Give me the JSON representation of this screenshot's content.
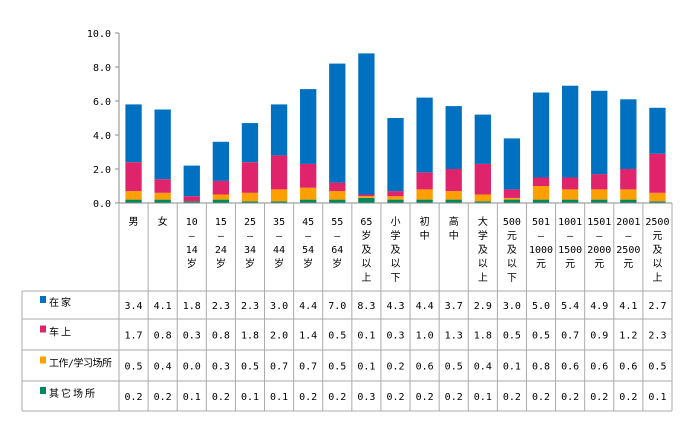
{
  "chart_data": {
    "type": "bar",
    "stacked": true,
    "title": "",
    "xlabel": "",
    "ylabel": "",
    "ylim": [
      0,
      10
    ],
    "yticks": [
      "0.0",
      "2.0",
      "4.0",
      "6.0",
      "8.0",
      "10.0"
    ],
    "categories": [
      "男",
      "女",
      "10–14岁",
      "15–24岁",
      "25–34岁",
      "35–44岁",
      "45–54岁",
      "55–64岁",
      "65岁及以上",
      "小学及以下",
      "初中",
      "高中",
      "大学及以上",
      "500元及以下",
      "501–1000元",
      "1001–1500元",
      "1501–2000元",
      "2001–2500元",
      "2500元及以上"
    ],
    "category_lines": [
      [
        "男"
      ],
      [
        "女"
      ],
      [
        "10",
        "–",
        "14",
        "岁"
      ],
      [
        "15",
        "–",
        "24",
        "岁"
      ],
      [
        "25",
        "–",
        "34",
        "岁"
      ],
      [
        "35",
        "–",
        "44",
        "岁"
      ],
      [
        "45",
        "–",
        "54",
        "岁"
      ],
      [
        "55",
        "–",
        "64",
        "岁"
      ],
      [
        "65",
        "岁",
        "及",
        "以",
        "上"
      ],
      [
        "小",
        "学",
        "及",
        "以",
        "下"
      ],
      [
        "初",
        "中"
      ],
      [
        "高",
        "中"
      ],
      [
        "大",
        "学",
        "及",
        "以",
        "上"
      ],
      [
        "500",
        "元",
        "及",
        "以",
        "下"
      ],
      [
        "501",
        "–",
        "1000",
        "元"
      ],
      [
        "1001",
        "–",
        "1500",
        "元"
      ],
      [
        "1501",
        "–",
        "2000",
        "元"
      ],
      [
        "2001",
        "–",
        "2500",
        "元"
      ],
      [
        "2500",
        "元",
        "及",
        "以",
        "上"
      ]
    ],
    "series": [
      {
        "name": "在家",
        "color": "#0070C0",
        "values": [
          3.4,
          4.1,
          1.8,
          2.3,
          2.3,
          3.0,
          4.4,
          7.0,
          8.3,
          4.3,
          4.4,
          3.7,
          2.9,
          3.0,
          5.0,
          5.4,
          4.9,
          4.1,
          2.7
        ]
      },
      {
        "name": "车上",
        "color": "#E0246C",
        "values": [
          1.7,
          0.8,
          0.3,
          0.8,
          1.8,
          2.0,
          1.4,
          0.5,
          0.1,
          0.3,
          1.0,
          1.3,
          1.8,
          0.5,
          0.5,
          0.7,
          0.9,
          1.2,
          2.3
        ]
      },
      {
        "name": "工作/学习场所",
        "color": "#FFA000",
        "values": [
          0.5,
          0.4,
          0.0,
          0.3,
          0.5,
          0.7,
          0.7,
          0.5,
          0.1,
          0.2,
          0.6,
          0.5,
          0.4,
          0.1,
          0.8,
          0.6,
          0.6,
          0.6,
          0.5
        ]
      },
      {
        "name": "其它场所",
        "color": "#00875A",
        "values": [
          0.2,
          0.2,
          0.1,
          0.2,
          0.1,
          0.1,
          0.2,
          0.2,
          0.3,
          0.2,
          0.2,
          0.2,
          0.1,
          0.2,
          0.2,
          0.2,
          0.2,
          0.2,
          0.1
        ]
      }
    ],
    "legend": "data-table-left",
    "grid": false
  }
}
